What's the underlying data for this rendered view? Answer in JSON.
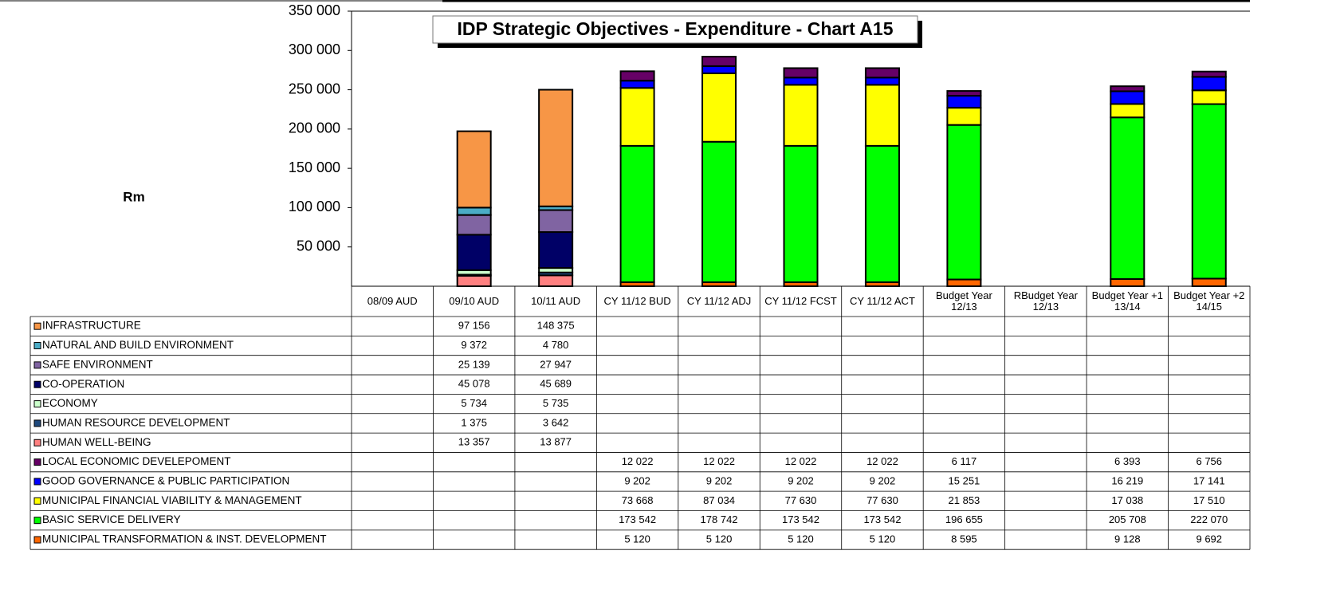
{
  "chart_data": {
    "type": "stacked_bar",
    "title": "IDP Strategic Objectives - Expenditure - Chart A15",
    "y_label": "Rm",
    "ylim": [
      0,
      350000
    ],
    "yticks": [
      {
        "value": 50000,
        "label": "50 000"
      },
      {
        "value": 100000,
        "label": "100 000"
      },
      {
        "value": 150000,
        "label": "150 000"
      },
      {
        "value": 200000,
        "label": "200 000"
      },
      {
        "value": 250000,
        "label": "250 000"
      },
      {
        "value": 300000,
        "label": "300 000"
      },
      {
        "value": 350000,
        "label": "350 000"
      }
    ],
    "grid": false,
    "categories": [
      "08/09 AUD",
      "09/10 AUD",
      "10/11 AUD",
      "CY 11/12 BUD",
      "CY  11/12 ADJ",
      "CY 11/12 FCST",
      "CY 11/12 ACT",
      "Budget Year 12/13",
      "RBudget Year 12/13",
      "Budget Year +1 13/14",
      "Budget Year +2 14/15"
    ],
    "series": [
      {
        "name": "INFRASTRUCTURE",
        "color": "#f79646",
        "values": [
          null,
          97156,
          148375,
          null,
          null,
          null,
          null,
          null,
          null,
          null,
          null
        ],
        "value_labels": [
          null,
          "97 156",
          "148 375",
          null,
          null,
          null,
          null,
          null,
          null,
          null,
          null
        ]
      },
      {
        "name": "NATURAL AND BUILD ENVIRONMENT",
        "color": "#4bacc6",
        "values": [
          null,
          9372,
          4780,
          null,
          null,
          null,
          null,
          null,
          null,
          null,
          null
        ],
        "value_labels": [
          null,
          "9 372",
          "4 780",
          null,
          null,
          null,
          null,
          null,
          null,
          null,
          null
        ]
      },
      {
        "name": "SAFE ENVIRONMENT",
        "color": "#8064a2",
        "values": [
          null,
          25139,
          27947,
          null,
          null,
          null,
          null,
          null,
          null,
          null,
          null
        ],
        "value_labels": [
          null,
          "25 139",
          "27 947",
          null,
          null,
          null,
          null,
          null,
          null,
          null,
          null
        ]
      },
      {
        "name": "CO-OPERATION",
        "color": "#000066",
        "values": [
          null,
          45078,
          45689,
          null,
          null,
          null,
          null,
          null,
          null,
          null,
          null
        ],
        "value_labels": [
          null,
          "45 078",
          "45 689",
          null,
          null,
          null,
          null,
          null,
          null,
          null,
          null
        ]
      },
      {
        "name": "ECONOMY",
        "color": "#ccffcc",
        "values": [
          null,
          5734,
          5735,
          null,
          null,
          null,
          null,
          null,
          null,
          null,
          null
        ],
        "value_labels": [
          null,
          "5 734",
          "5 735",
          null,
          null,
          null,
          null,
          null,
          null,
          null,
          null
        ]
      },
      {
        "name": "HUMAN RESOURCE DEVELOPMENT",
        "color": "#1f497d",
        "values": [
          null,
          1375,
          3642,
          null,
          null,
          null,
          null,
          null,
          null,
          null,
          null
        ],
        "value_labels": [
          null,
          "1 375",
          "3 642",
          null,
          null,
          null,
          null,
          null,
          null,
          null,
          null
        ]
      },
      {
        "name": "HUMAN WELL-BEING",
        "color": "#ff8080",
        "values": [
          null,
          13357,
          13877,
          null,
          null,
          null,
          null,
          null,
          null,
          null,
          null
        ],
        "value_labels": [
          null,
          "13 357",
          "13 877",
          null,
          null,
          null,
          null,
          null,
          null,
          null,
          null
        ]
      },
      {
        "name": "LOCAL ECONOMIC DEVELEPOMENT",
        "color": "#660066",
        "values": [
          null,
          null,
          null,
          12022,
          12022,
          12022,
          12022,
          6117,
          null,
          6393,
          6756
        ],
        "value_labels": [
          null,
          null,
          null,
          "12 022",
          "12 022",
          "12 022",
          "12 022",
          "6 117",
          null,
          "6 393",
          "6 756"
        ]
      },
      {
        "name": "GOOD GOVERNANCE & PUBLIC PARTICIPATION",
        "color": "#0000ff",
        "values": [
          null,
          null,
          null,
          9202,
          9202,
          9202,
          9202,
          15251,
          null,
          16219,
          17141
        ],
        "value_labels": [
          null,
          null,
          null,
          "9 202",
          "9 202",
          "9 202",
          "9 202",
          "15 251",
          null,
          "16 219",
          "17 141"
        ]
      },
      {
        "name": "MUNICIPAL FINANCIAL VIABILITY & MANAGEMENT",
        "color": "#ffff00",
        "values": [
          null,
          null,
          null,
          73668,
          87034,
          77630,
          77630,
          21853,
          null,
          17038,
          17510
        ],
        "value_labels": [
          null,
          null,
          null,
          "73 668",
          "87 034",
          "77 630",
          "77 630",
          "21 853",
          null,
          "17 038",
          "17 510"
        ]
      },
      {
        "name": "BASIC SERVICE DELIVERY",
        "color": "#00ff00",
        "values": [
          null,
          null,
          null,
          173542,
          178742,
          173542,
          173542,
          196655,
          null,
          205708,
          222070
        ],
        "value_labels": [
          null,
          null,
          null,
          "173 542",
          "178 742",
          "173 542",
          "173 542",
          "196 655",
          null,
          "205 708",
          "222 070"
        ]
      },
      {
        "name": "MUNICIPAL TRANSFORMATION & INST. DEVELOPMENT",
        "color": "#ff6600",
        "values": [
          null,
          null,
          null,
          5120,
          5120,
          5120,
          5120,
          8595,
          null,
          9128,
          9692
        ],
        "value_labels": [
          null,
          null,
          null,
          "5 120",
          "5 120",
          "5 120",
          "5 120",
          "8 595",
          null,
          "9 128",
          "9 692"
        ]
      }
    ]
  }
}
